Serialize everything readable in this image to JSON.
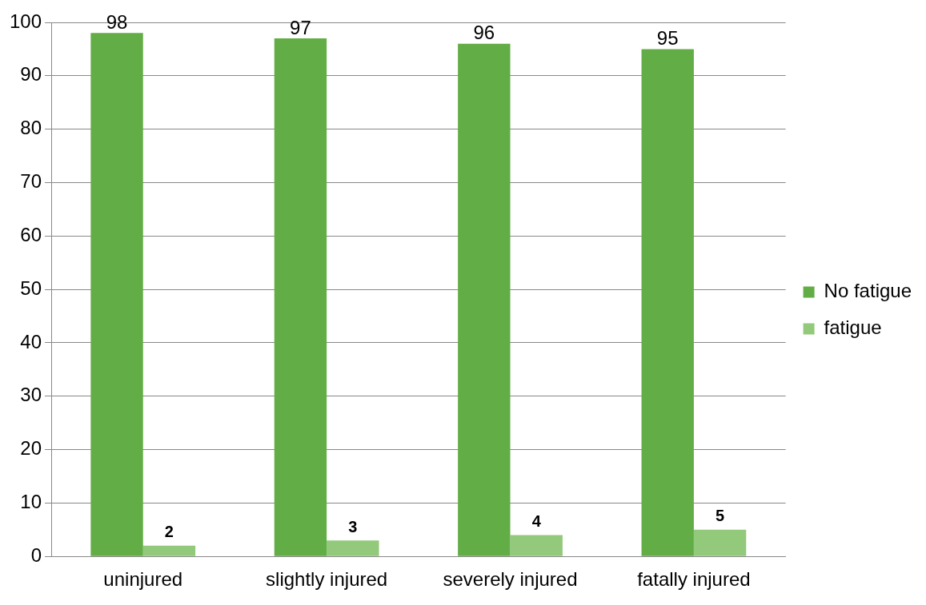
{
  "chart_data": {
    "type": "bar",
    "categories": [
      "uninjured",
      "slightly injured",
      "severely injured",
      "fatally injured"
    ],
    "series": [
      {
        "name": "No fatigue",
        "color": "#62ad45",
        "values": [
          98,
          97,
          96,
          95
        ]
      },
      {
        "name": "fatigue",
        "color": "#93c97b",
        "values": [
          2,
          3,
          4,
          5
        ]
      }
    ],
    "ylim": [
      0,
      100
    ],
    "yticks": [
      0,
      10,
      20,
      30,
      40,
      50,
      60,
      70,
      80,
      90,
      100
    ],
    "grid": "y",
    "legend": "right",
    "data_labels": true
  }
}
